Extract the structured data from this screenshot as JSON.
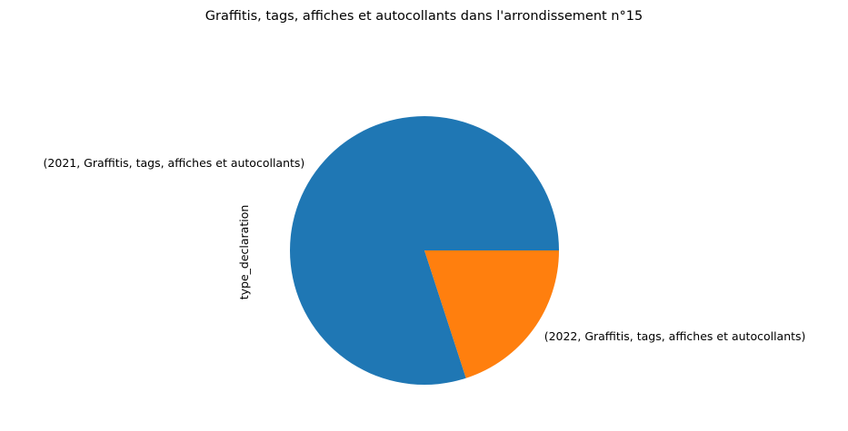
{
  "chart_data": {
    "type": "pie",
    "title": "Graffitis, tags, affiches et autocollants dans l'arrondissement n°15",
    "ylabel": "type_declaration",
    "start_angle_deg": 0,
    "direction": "counterclockwise",
    "legend": "none",
    "slices": [
      {
        "label": "(2021, Graffitis, tags, affiches et autocollants)",
        "share": 0.8,
        "color": "#1f77b4"
      },
      {
        "label": "(2022, Graffitis, tags, affiches et autocollants)",
        "share": 0.2,
        "color": "#ff7f0e"
      }
    ]
  }
}
